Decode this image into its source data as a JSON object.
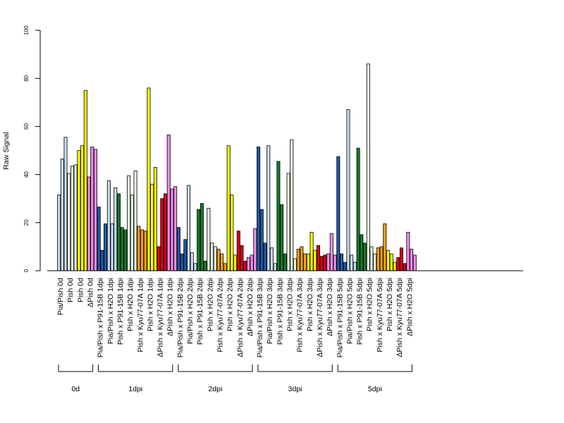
{
  "chart_data": {
    "type": "bar",
    "ylabel": "Raw Signal",
    "ylim": [
      0,
      100
    ],
    "yticks": [
      "0",
      "20",
      "40",
      "60",
      "80",
      "100"
    ],
    "colors": {
      "Pia/Pish": "#c6dbef",
      "Pish": "#e5f5e0",
      "Pish_H2O": "#ffff00",
      "P91-15B": "#1f5aa6",
      "Kyu77-07A": "#f59f1b",
      "dPish": "#f08ce8",
      "dPish_Kyu": "#d7001a"
    },
    "categories": [
      {
        "label": "Pia/Pish 0d",
        "color_key": "Pia/Pish",
        "values": [
          31.5,
          46.5,
          55.5
        ]
      },
      {
        "label": "Pish 0d",
        "color_key": "Pish",
        "values": [
          40.5,
          43.5,
          44.0
        ]
      },
      {
        "label": "Pish 0d",
        "color_key": "Pish_H2O",
        "values": [
          50.0,
          52.0,
          75.0
        ]
      },
      {
        "label": "ΔPish 0d",
        "color_key": "dPish",
        "values": [
          39.0,
          51.5,
          50.5
        ]
      },
      {
        "label": "Pia/Pish x P91-15B 1dpi",
        "color_key": "P91-15B",
        "values": [
          26.5,
          8.5,
          19.5
        ]
      },
      {
        "label": "Pia/Pish x H2O 1dpi",
        "color_key": "Pia/Pish",
        "values": [
          37.5,
          19.5,
          34.5
        ]
      },
      {
        "label": "Pish x P91-15B 1dpi",
        "color_key": "P91-15B_g",
        "values": [
          32.0,
          18.0,
          17.0
        ]
      },
      {
        "label": "Pish x H2O 1dpi",
        "color_key": "Pish",
        "values": [
          39.5,
          31.5,
          41.5
        ]
      },
      {
        "label": "Pish x Kyu77-07A 1dpi",
        "color_key": "Kyu77-07A",
        "values": [
          18.5,
          17.0,
          16.5
        ]
      },
      {
        "label": "Pish x H2O 1dpi",
        "color_key": "Pish_H2O",
        "values": [
          76.0,
          36.0,
          43.0
        ]
      },
      {
        "label": "ΔPish x Kyu77-07A 1dpi",
        "color_key": "dPish_Kyu",
        "values": [
          10.0,
          30.0,
          32.0
        ]
      },
      {
        "label": "ΔPish x H2O 1dpi",
        "color_key": "dPish",
        "values": [
          56.5,
          34.0,
          35.0
        ]
      },
      {
        "label": "Pia/Pish x P91-15B 2dpi",
        "color_key": "P91-15B",
        "values": [
          18.0,
          7.0,
          13.0
        ]
      },
      {
        "label": "Pia/Pish x H2O 2dpi",
        "color_key": "Pia/Pish",
        "values": [
          35.5,
          7.5,
          3.0
        ]
      },
      {
        "label": "Pish x P91-15B 2dpi",
        "color_key": "P91-15B_g",
        "values": [
          25.5,
          28.0,
          4.0
        ]
      },
      {
        "label": "Pish x H2O 2dpi",
        "color_key": "Pish",
        "values": [
          26.0,
          11.5,
          10.0
        ]
      },
      {
        "label": "Pish x Kyu77-07A 2dpi",
        "color_key": "Kyu77-07A",
        "values": [
          9.0,
          7.0,
          3.0
        ]
      },
      {
        "label": "Pish x H2O 2dpi",
        "color_key": "Pish_H2O",
        "values": [
          52.0,
          31.5,
          6.5
        ]
      },
      {
        "label": "ΔPish x Kyu77-07A 2dpi",
        "color_key": "dPish_Kyu",
        "values": [
          16.5,
          10.5,
          4.0
        ]
      },
      {
        "label": "ΔPish x H2O 2dpi",
        "color_key": "dPish",
        "values": [
          5.5,
          6.5,
          17.5
        ]
      },
      {
        "label": "Pia/Pish x P91-15B 3dpi",
        "color_key": "P91-15B",
        "values": [
          51.5,
          25.5,
          11.5
        ]
      },
      {
        "label": "Pia/Pish x H2O 3dpi",
        "color_key": "Pia/Pish",
        "values": [
          52.0,
          9.5,
          3.0
        ]
      },
      {
        "label": "Pish x P91-15B 3dpi",
        "color_key": "P91-15B_g",
        "values": [
          45.5,
          27.5,
          7.0
        ]
      },
      {
        "label": "Pish x H2O 3dpi",
        "color_key": "Pish",
        "values": [
          40.5,
          54.5,
          5.0
        ]
      },
      {
        "label": "Pish x Kyu77-07A 3dpi",
        "color_key": "Kyu77-07A",
        "values": [
          9.0,
          10.0,
          7.0
        ]
      },
      {
        "label": "Pish x H2O 3dpi",
        "color_key": "Pish_H2O",
        "values": [
          7.0,
          16.0,
          8.5
        ]
      },
      {
        "label": "ΔPish x Kyu77-07A 3dpi",
        "color_key": "dPish_Kyu",
        "values": [
          10.5,
          6.0,
          6.5
        ]
      },
      {
        "label": "ΔPish x H2O 3dpi",
        "color_key": "dPish",
        "values": [
          7.0,
          15.5,
          6.5
        ]
      },
      {
        "label": "Pia/Pish x P91-15B 5dpi",
        "color_key": "P91-15B",
        "values": [
          47.5,
          7.0,
          3.5
        ]
      },
      {
        "label": "Pia/Pish x H2O 5dpi",
        "color_key": "Pia/Pish",
        "values": [
          67.0,
          6.5,
          3.5
        ]
      },
      {
        "label": "Pish x P91-15B 5dpi",
        "color_key": "P91-15B_g",
        "values": [
          51.0,
          15.0,
          11.5
        ]
      },
      {
        "label": "Pish x H2O 5dpi",
        "color_key": "Pish",
        "values": [
          86.0,
          10.0,
          7.0
        ]
      },
      {
        "label": "Pish x Kyu77-07A 5dpi",
        "color_key": "Kyu77-07A",
        "values": [
          9.5,
          10.0,
          19.5
        ]
      },
      {
        "label": "Pish x H2O 5dpi",
        "color_key": "Pish_H2O",
        "values": [
          8.5,
          7.0,
          3.5
        ]
      },
      {
        "label": "ΔPish x Kyu77-07A 5dpi",
        "color_key": "dPish_Kyu",
        "values": [
          5.5,
          9.5,
          3.0
        ]
      },
      {
        "label": "ΔPish x H2O 5dpi",
        "color_key": "dPish",
        "values": [
          16.0,
          9.0,
          6.5
        ]
      }
    ],
    "extra_colors": {
      "P91-15B_g": "#177a2d"
    },
    "groups": [
      {
        "label": "0d",
        "start": 0,
        "end": 3
      },
      {
        "label": "1dpi",
        "start": 4,
        "end": 11
      },
      {
        "label": "2dpi",
        "start": 12,
        "end": 19
      },
      {
        "label": "3dpi",
        "start": 20,
        "end": 27
      },
      {
        "label": "5dpi",
        "start": 28,
        "end": 35
      }
    ],
    "grid": false
  }
}
